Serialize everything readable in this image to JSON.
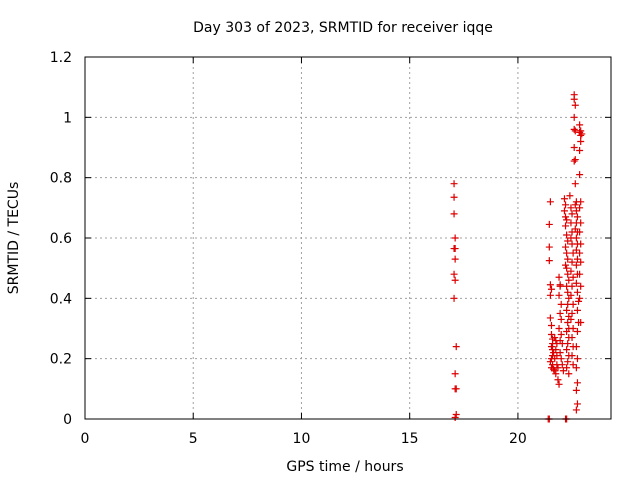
{
  "chart_data": {
    "type": "scatter",
    "title": "Day 303 of 2023, SRMTID for receiver iqqe",
    "xlabel": "GPS time / hours",
    "ylabel": "SRMTID / TECUs",
    "xlim": [
      0,
      24.3
    ],
    "ylim": [
      0,
      1.2
    ],
    "xticks": [
      0,
      5,
      10,
      15,
      20
    ],
    "xtick_labels": [
      "0",
      "5",
      "10",
      "15",
      "20"
    ],
    "yticks": [
      0,
      0.2,
      0.4,
      0.6,
      0.8,
      1.0,
      1.2
    ],
    "ytick_labels": [
      "0",
      "0.2",
      "0.4",
      "0.6",
      "0.8",
      "1",
      "1.2"
    ],
    "grid": true,
    "marker": "plus",
    "color": "#dd0000",
    "series": [
      {
        "points": [
          [
            17.05,
            0.78
          ],
          [
            17.05,
            0.735
          ],
          [
            17.05,
            0.68
          ],
          [
            17.1,
            0.6
          ],
          [
            17.05,
            0.565
          ],
          [
            17.1,
            0.565
          ],
          [
            17.1,
            0.53
          ],
          [
            17.05,
            0.48
          ],
          [
            17.1,
            0.46
          ],
          [
            17.05,
            0.4
          ],
          [
            17.15,
            0.24
          ],
          [
            17.1,
            0.15
          ],
          [
            17.1,
            0.1
          ],
          [
            17.15,
            0.1
          ],
          [
            17.15,
            0.015
          ],
          [
            17.1,
            0.005
          ],
          [
            21.4,
            0.0
          ],
          [
            21.45,
            0.0
          ],
          [
            22.2,
            0.0
          ],
          [
            22.25,
            0.0
          ],
          [
            21.5,
            0.72
          ],
          [
            21.45,
            0.645
          ],
          [
            21.45,
            0.57
          ],
          [
            21.45,
            0.525
          ],
          [
            21.5,
            0.445
          ],
          [
            21.55,
            0.43
          ],
          [
            21.5,
            0.41
          ],
          [
            21.5,
            0.335
          ],
          [
            21.55,
            0.31
          ],
          [
            21.55,
            0.28
          ],
          [
            21.6,
            0.265
          ],
          [
            21.6,
            0.25
          ],
          [
            21.55,
            0.24
          ],
          [
            21.6,
            0.23
          ],
          [
            21.65,
            0.22
          ],
          [
            21.6,
            0.21
          ],
          [
            21.55,
            0.2
          ],
          [
            21.5,
            0.19
          ],
          [
            21.6,
            0.18
          ],
          [
            21.55,
            0.17
          ],
          [
            21.65,
            0.165
          ],
          [
            21.7,
            0.16
          ],
          [
            21.75,
            0.15
          ],
          [
            21.7,
            0.27
          ],
          [
            21.75,
            0.26
          ],
          [
            21.8,
            0.25
          ],
          [
            21.75,
            0.23
          ],
          [
            21.8,
            0.21
          ],
          [
            21.7,
            0.2
          ],
          [
            21.8,
            0.18
          ],
          [
            21.85,
            0.17
          ],
          [
            21.85,
            0.13
          ],
          [
            21.9,
            0.115
          ],
          [
            21.9,
            0.47
          ],
          [
            21.95,
            0.445
          ],
          [
            21.95,
            0.44
          ],
          [
            21.9,
            0.41
          ],
          [
            22.0,
            0.38
          ],
          [
            21.95,
            0.35
          ],
          [
            22.0,
            0.33
          ],
          [
            21.9,
            0.3
          ],
          [
            22.0,
            0.28
          ],
          [
            21.95,
            0.26
          ],
          [
            22.05,
            0.25
          ],
          [
            21.95,
            0.22
          ],
          [
            22.0,
            0.2
          ],
          [
            22.05,
            0.18
          ],
          [
            22.1,
            0.16
          ],
          [
            22.15,
            0.73
          ],
          [
            22.2,
            0.71
          ],
          [
            22.15,
            0.69
          ],
          [
            22.2,
            0.67
          ],
          [
            22.25,
            0.66
          ],
          [
            22.2,
            0.64
          ],
          [
            22.25,
            0.61
          ],
          [
            22.3,
            0.59
          ],
          [
            22.2,
            0.57
          ],
          [
            22.25,
            0.55
          ],
          [
            22.3,
            0.53
          ],
          [
            22.2,
            0.51
          ],
          [
            22.25,
            0.5
          ],
          [
            22.3,
            0.48
          ],
          [
            22.35,
            0.46
          ],
          [
            22.25,
            0.44
          ],
          [
            22.3,
            0.42
          ],
          [
            22.35,
            0.4
          ],
          [
            22.3,
            0.38
          ],
          [
            22.25,
            0.36
          ],
          [
            22.35,
            0.34
          ],
          [
            22.3,
            0.32
          ],
          [
            22.35,
            0.3
          ],
          [
            22.25,
            0.29
          ],
          [
            22.35,
            0.27
          ],
          [
            22.3,
            0.25
          ],
          [
            22.25,
            0.23
          ],
          [
            22.35,
            0.21
          ],
          [
            22.3,
            0.19
          ],
          [
            22.25,
            0.17
          ],
          [
            22.35,
            0.15
          ],
          [
            22.4,
            0.74
          ],
          [
            22.45,
            0.7
          ],
          [
            22.5,
            0.68
          ],
          [
            22.45,
            0.65
          ],
          [
            22.5,
            0.62
          ],
          [
            22.45,
            0.6
          ],
          [
            22.5,
            0.58
          ],
          [
            22.55,
            0.55
          ],
          [
            22.5,
            0.52
          ],
          [
            22.45,
            0.49
          ],
          [
            22.55,
            0.47
          ],
          [
            22.5,
            0.44
          ],
          [
            22.45,
            0.41
          ],
          [
            22.55,
            0.38
          ],
          [
            22.5,
            0.35
          ],
          [
            22.45,
            0.33
          ],
          [
            22.55,
            0.3
          ],
          [
            22.5,
            0.27
          ],
          [
            22.55,
            0.24
          ],
          [
            22.5,
            0.21
          ],
          [
            22.55,
            0.18
          ],
          [
            22.6,
            1.075
          ],
          [
            22.6,
            1.06
          ],
          [
            22.65,
            1.04
          ],
          [
            22.6,
            1.0
          ],
          [
            22.6,
            0.96
          ],
          [
            22.65,
            0.955
          ],
          [
            22.6,
            0.9
          ],
          [
            22.6,
            0.855
          ],
          [
            22.65,
            0.86
          ],
          [
            22.65,
            0.78
          ],
          [
            22.7,
            0.72
          ],
          [
            22.65,
            0.71
          ],
          [
            22.7,
            0.69
          ],
          [
            22.75,
            0.67
          ],
          [
            22.7,
            0.65
          ],
          [
            22.65,
            0.63
          ],
          [
            22.75,
            0.62
          ],
          [
            22.7,
            0.6
          ],
          [
            22.75,
            0.58
          ],
          [
            22.7,
            0.56
          ],
          [
            22.75,
            0.53
          ],
          [
            22.7,
            0.51
          ],
          [
            22.75,
            0.48
          ],
          [
            22.7,
            0.45
          ],
          [
            22.75,
            0.42
          ],
          [
            22.8,
            0.39
          ],
          [
            22.75,
            0.36
          ],
          [
            22.8,
            0.32
          ],
          [
            22.75,
            0.29
          ],
          [
            22.7,
            0.24
          ],
          [
            22.75,
            0.2
          ],
          [
            22.7,
            0.17
          ],
          [
            22.75,
            0.12
          ],
          [
            22.7,
            0.095
          ],
          [
            22.75,
            0.05
          ],
          [
            22.7,
            0.03
          ],
          [
            22.85,
            0.975
          ],
          [
            22.9,
            0.955
          ],
          [
            22.85,
            0.95
          ],
          [
            22.9,
            0.94
          ],
          [
            22.95,
            0.945
          ],
          [
            22.9,
            0.92
          ],
          [
            22.85,
            0.89
          ],
          [
            22.85,
            0.81
          ],
          [
            22.9,
            0.72
          ],
          [
            22.85,
            0.7
          ],
          [
            22.9,
            0.65
          ],
          [
            22.85,
            0.62
          ],
          [
            22.9,
            0.58
          ],
          [
            22.85,
            0.55
          ],
          [
            22.9,
            0.52
          ],
          [
            22.85,
            0.48
          ],
          [
            22.9,
            0.44
          ],
          [
            22.85,
            0.4
          ],
          [
            22.9,
            0.32
          ]
        ]
      }
    ]
  }
}
